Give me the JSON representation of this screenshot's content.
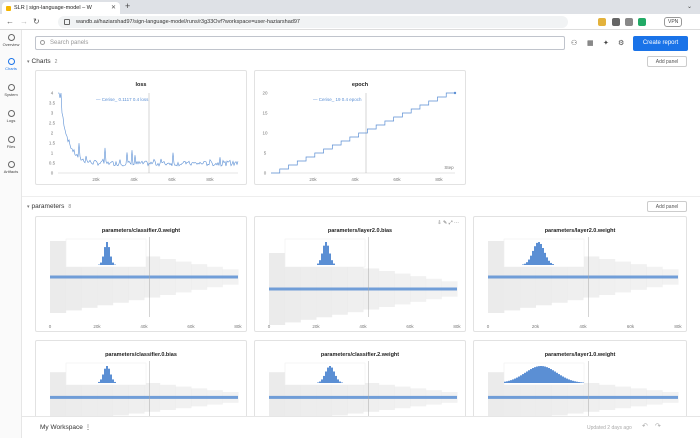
{
  "browser": {
    "tab_title": "SLR | sign-language-model – W",
    "url": "wandb.ai/haziarshad97/sign-language-model/runs/r3g33Ovf?workspace=user-haziarshad97",
    "vpn_label": "VPN"
  },
  "sidebar": {
    "items": [
      {
        "label": "Overview",
        "icon": "info-icon"
      },
      {
        "label": "Charts",
        "icon": "chart-icon",
        "active": true
      },
      {
        "label": "System",
        "icon": "chip-icon"
      },
      {
        "label": "Logs",
        "icon": "terminal-icon"
      },
      {
        "label": "Files",
        "icon": "file-icon"
      },
      {
        "label": "Artifacts",
        "icon": "layers-icon"
      }
    ]
  },
  "toolbar": {
    "search_placeholder": "Search panels",
    "create_report": "Create report"
  },
  "sections": {
    "charts": {
      "title": "Charts",
      "count": "2",
      "add_panel": "Add panel"
    },
    "parameters": {
      "title": "parameters",
      "count": "8",
      "add_panel": "Add panel"
    }
  },
  "panels": {
    "loss": {
      "title": "loss",
      "legend": "— Cerise_ 0.1117 0.4 loss"
    },
    "epoch": {
      "title": "epoch",
      "legend": "— Cerise_ 19 0.4 epoch"
    },
    "p1": {
      "title": "parameters/classifier.0.weight"
    },
    "p2": {
      "title": "parameters/layer2.0.bias"
    },
    "p3": {
      "title": "parameters/layer2.0.weight"
    },
    "p4": {
      "title": "parameters/classifier.0.bias"
    },
    "p5": {
      "title": "parameters/classifier.2.weight"
    },
    "p6": {
      "title": "parameters/layer1.0.weight"
    }
  },
  "axes": {
    "step_ticks": [
      "0",
      "20k",
      "40k",
      "60k",
      "80k"
    ],
    "step_label": "Step",
    "loss_y": [
      "4",
      "3.5",
      "3",
      "2.5",
      "2",
      "1.5",
      "1",
      "0.5",
      "0"
    ],
    "epoch_y": [
      "20",
      "15",
      "10",
      "5",
      "0"
    ]
  },
  "footer": {
    "workspace": "My Workspace",
    "updated": "Updated 2 days ago"
  },
  "colors": {
    "accent": "#1a73e8",
    "series": "#5b8fd4",
    "band": "#e9e9e9"
  }
}
